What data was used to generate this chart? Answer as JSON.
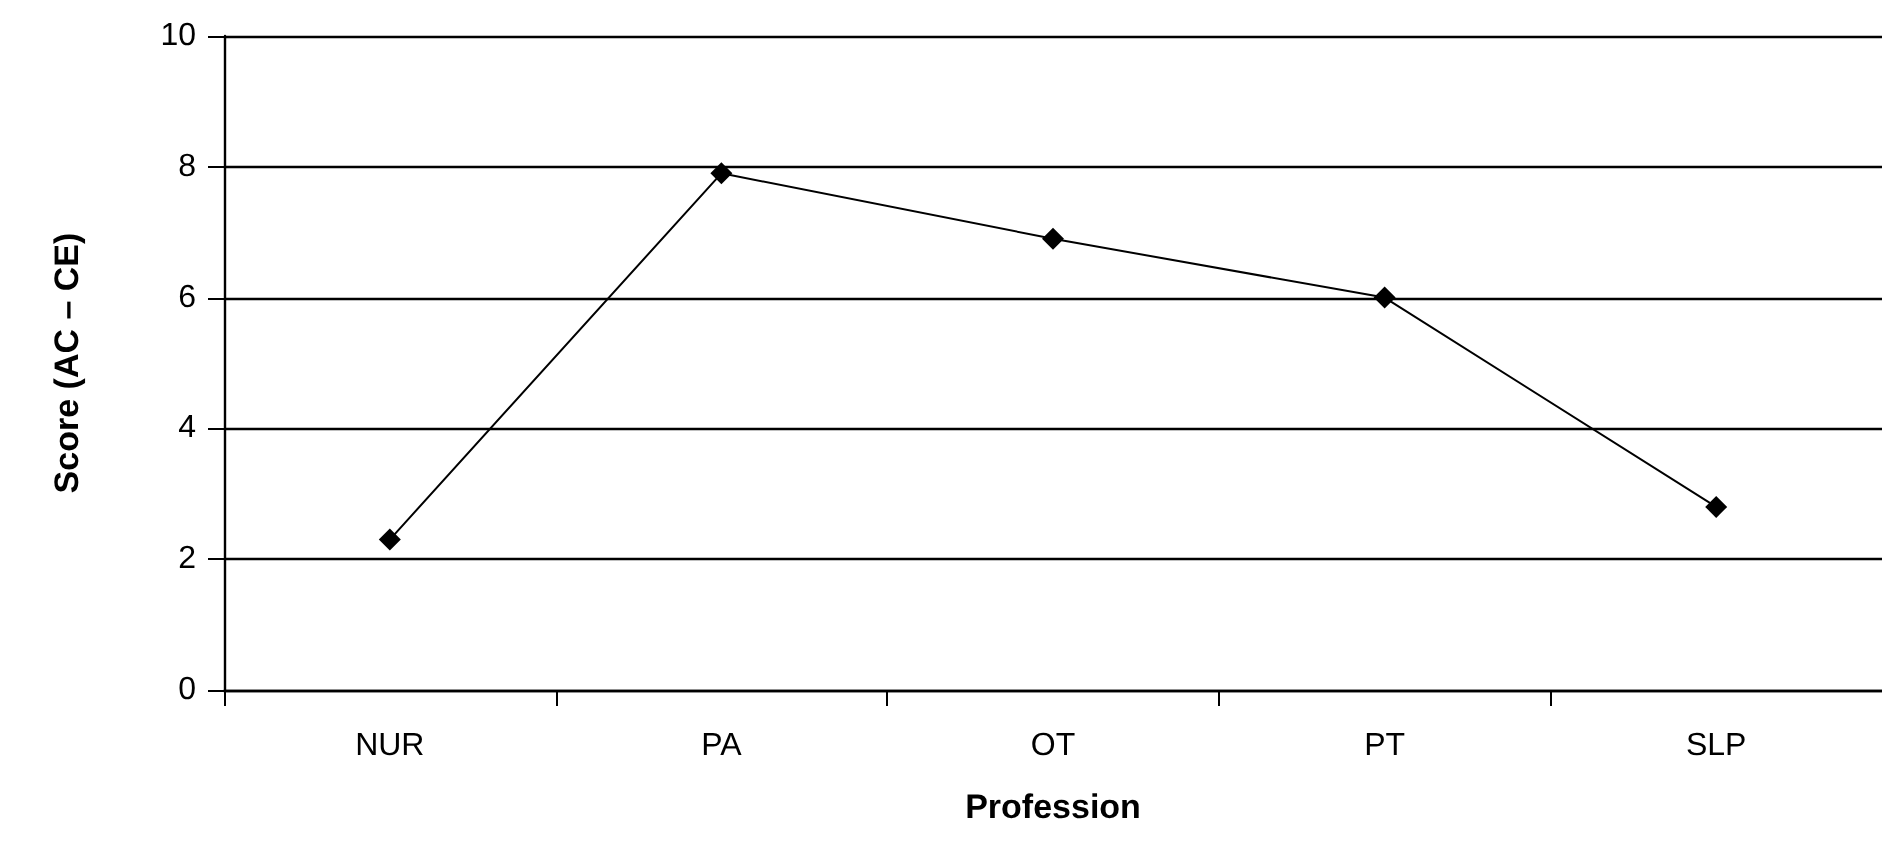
{
  "chart_data": {
    "type": "line",
    "xlabel": "Profession",
    "ylabel": "Score (AC – CE)",
    "categories": [
      "NUR",
      "PA",
      "OT",
      "PT",
      "SLP"
    ],
    "series": [
      {
        "color": "#000000",
        "values": [
          2.3,
          7.9,
          6.9,
          6.0,
          2.8
        ]
      }
    ],
    "ylim": [
      0,
      10
    ],
    "yticks": [
      0,
      2,
      4,
      6,
      8,
      10
    ],
    "grid": "y",
    "marker": "diamond",
    "line_style": "solid"
  }
}
